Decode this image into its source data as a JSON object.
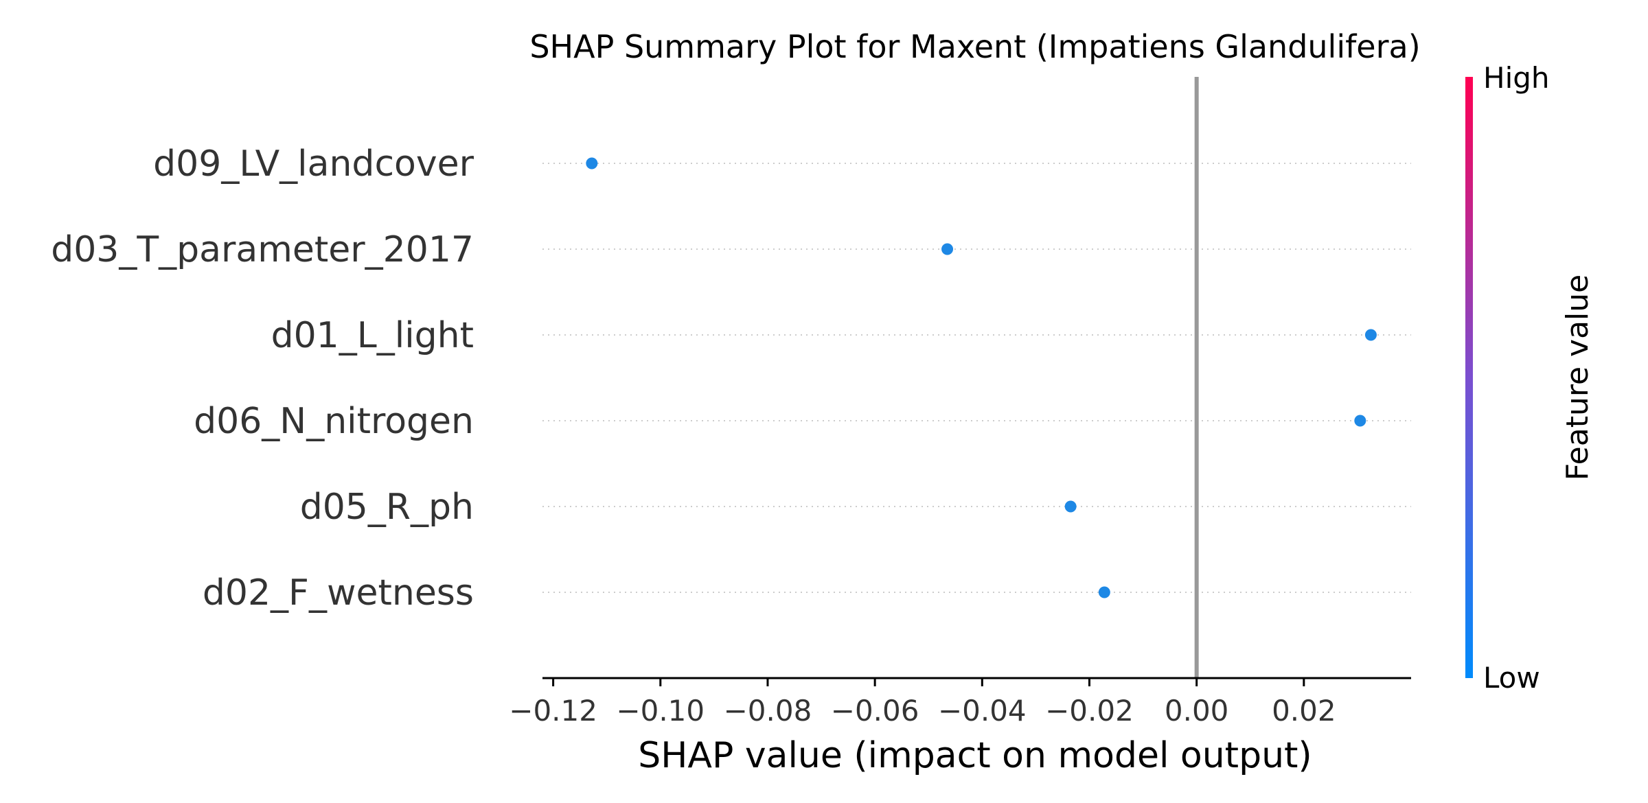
{
  "chart_data": {
    "type": "scatter",
    "title": "SHAP Summary Plot for Maxent (Impatiens Glandulifera)",
    "xlabel": "SHAP value (impact on model output)",
    "ylabel": "",
    "xlim": [
      -0.122,
      0.04
    ],
    "x_ticks": [
      -0.12,
      -0.1,
      -0.08,
      -0.06,
      -0.04,
      -0.02,
      0.0,
      0.02
    ],
    "x_tick_labels": [
      "−0.12",
      "−0.10",
      "−0.08",
      "−0.06",
      "−0.04",
      "−0.02",
      "0.00",
      "0.02"
    ],
    "zero_line": 0.0,
    "features": [
      "d09_LV_landcover",
      "d03_T_parameter_2017",
      "d01_L_light",
      "d06_N_nitrogen",
      "d05_R_ph",
      "d02_F_wetness"
    ],
    "points": [
      {
        "feature": "d09_LV_landcover",
        "shap": -0.1128,
        "level": "low"
      },
      {
        "feature": "d03_T_parameter_2017",
        "shap": -0.0465,
        "level": "low"
      },
      {
        "feature": "d01_L_light",
        "shap": 0.0325,
        "level": "low"
      },
      {
        "feature": "d06_N_nitrogen",
        "shap": 0.0305,
        "level": "low"
      },
      {
        "feature": "d05_R_ph",
        "shap": -0.0235,
        "level": "low"
      },
      {
        "feature": "d02_F_wetness",
        "shap": -0.0172,
        "level": "low"
      }
    ],
    "colorbar": {
      "label": "Feature value",
      "high_label": "High",
      "low_label": "Low",
      "high_color": "#ff0d57",
      "low_color": "#1e88e5"
    },
    "colors": {
      "point": "#1e88e5",
      "zero_line": "#999999",
      "row_guides": "#cccccc",
      "axis": "#000000"
    }
  }
}
